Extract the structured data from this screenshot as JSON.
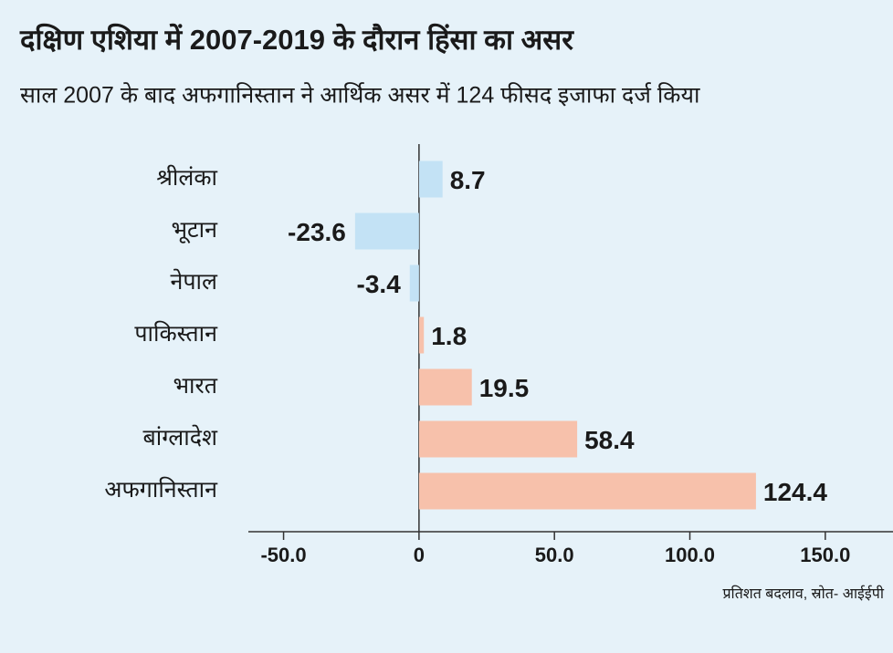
{
  "chart_data": {
    "type": "hbar",
    "title": "दक्षिण एशिया में 2007-2019 के दौरान हिंसा का असर",
    "subtitle": "साल 2007 के बाद अफगानिस्तान ने आर्थिक असर में 124 फीसद इजाफा दर्ज किया",
    "note": "प्रतिशत बदलाव, स्रोत- आईईपी",
    "categories": [
      "श्रीलंका",
      "भूटान",
      "नेपाल",
      "पाकिस्तान",
      "भारत",
      "बांग्लादेश",
      "अफगानिस्तान"
    ],
    "values": [
      8.7,
      -23.6,
      -3.4,
      1.8,
      19.5,
      58.4,
      124.4
    ],
    "colors": [
      "#c3e2f5",
      "#c3e2f5",
      "#c3e2f5",
      "#f7c1ab",
      "#f7c1ab",
      "#f7c1ab",
      "#f7c1ab"
    ],
    "xlim": [
      -63,
      175
    ],
    "xticks": [
      {
        "value": -50,
        "label": "-50.0"
      },
      0,
      {
        "value": 50,
        "label": "50.0"
      },
      {
        "value": 100,
        "label": "100.0"
      },
      {
        "value": 150,
        "label": "150.0"
      }
    ]
  }
}
